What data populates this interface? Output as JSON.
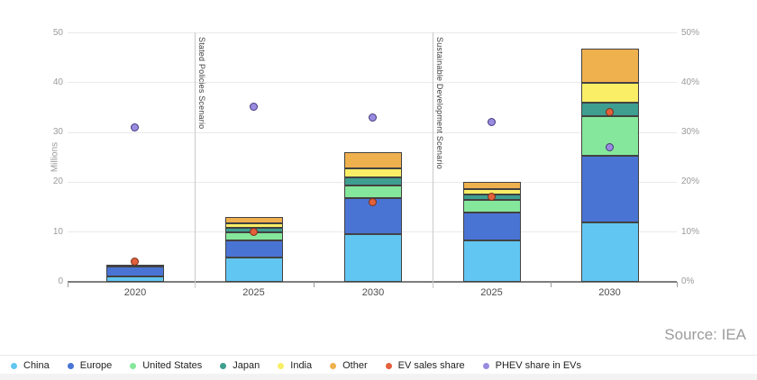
{
  "source_label": "Source: IEA",
  "chart_data": {
    "type": "bar",
    "stacked": true,
    "title": "",
    "ylabel_left": "Millions",
    "categories": [
      "2020",
      "2025",
      "2030",
      "2025",
      "2030"
    ],
    "group_separators": [
      {
        "label": "Stated Policies Scenario",
        "between": [
          0,
          1
        ]
      },
      {
        "label": "Sustainable Development Scenario",
        "between": [
          2,
          3
        ]
      }
    ],
    "ylim": [
      0,
      50
    ],
    "yticks_left": [
      "0",
      "10",
      "20",
      "30",
      "40",
      "50"
    ],
    "yticks_right": [
      "0%",
      "10%",
      "20%",
      "30%",
      "40%",
      "50%"
    ],
    "grid": true,
    "legend_position": "bottom",
    "series": [
      {
        "name": "China",
        "color": "#62c6f2",
        "values": [
          1.0,
          4.9,
          9.5,
          8.3,
          11.9
        ]
      },
      {
        "name": "Europe",
        "color": "#4a74d4",
        "values": [
          2.0,
          3.5,
          7.3,
          5.7,
          13.4
        ]
      },
      {
        "name": "United States",
        "color": "#85e79b",
        "values": [
          0.35,
          1.5,
          2.6,
          2.4,
          8.0
        ]
      },
      {
        "name": "Japan",
        "color": "#3e9e90",
        "values": [
          0.05,
          1.0,
          1.6,
          1.2,
          2.7
        ]
      },
      {
        "name": "India",
        "color": "#f9ee66",
        "values": [
          0.02,
          0.8,
          1.8,
          1.1,
          3.9
        ]
      },
      {
        "name": "Other",
        "color": "#efb04e",
        "values": [
          0.03,
          1.3,
          3.2,
          1.4,
          6.9
        ]
      }
    ],
    "markers": [
      {
        "name": "EV sales share",
        "color": "#e2603c",
        "outline": "#7c3018",
        "values": [
          4,
          10,
          16,
          17,
          34
        ]
      },
      {
        "name": "PHEV share in EVs",
        "color": "#998be0",
        "outline": "#45397c",
        "values": [
          31,
          35,
          33,
          32,
          27
        ]
      }
    ]
  }
}
